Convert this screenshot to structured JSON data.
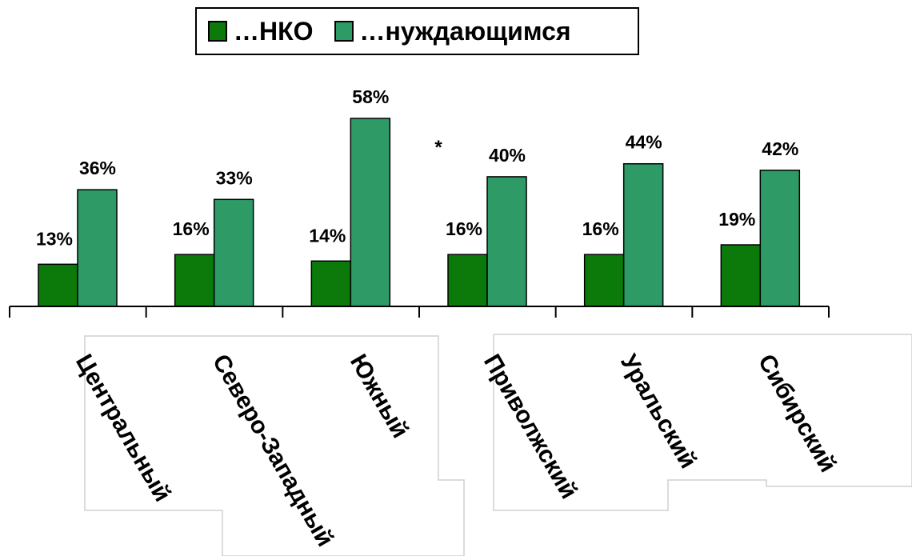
{
  "chart_data": {
    "type": "bar",
    "categories": [
      "Центральный",
      "Северо-Западный",
      "Южный",
      "Приволжский",
      "Уральский",
      "Сибирский"
    ],
    "series": [
      {
        "name": "…НКО",
        "values": [
          13,
          16,
          14,
          16,
          16,
          19
        ],
        "labels": [
          "13%",
          "16%",
          "14%",
          "16%",
          "16%",
          "19%"
        ],
        "color": "#0b7a0b"
      },
      {
        "name": "…нуждающимся",
        "values": [
          36,
          33,
          58,
          40,
          44,
          42
        ],
        "labels": [
          "36%",
          "33%",
          "58%",
          "40%",
          "44%",
          "42%"
        ],
        "color": "#2e9a66"
      }
    ],
    "annotation": "*",
    "ylim": [
      0,
      60
    ],
    "grid": false,
    "legend_position": "top-center",
    "value_labels": true
  },
  "colors": {
    "series_1": "#0b7a0b",
    "series_2": "#2e9a66",
    "axis": "#000000"
  }
}
